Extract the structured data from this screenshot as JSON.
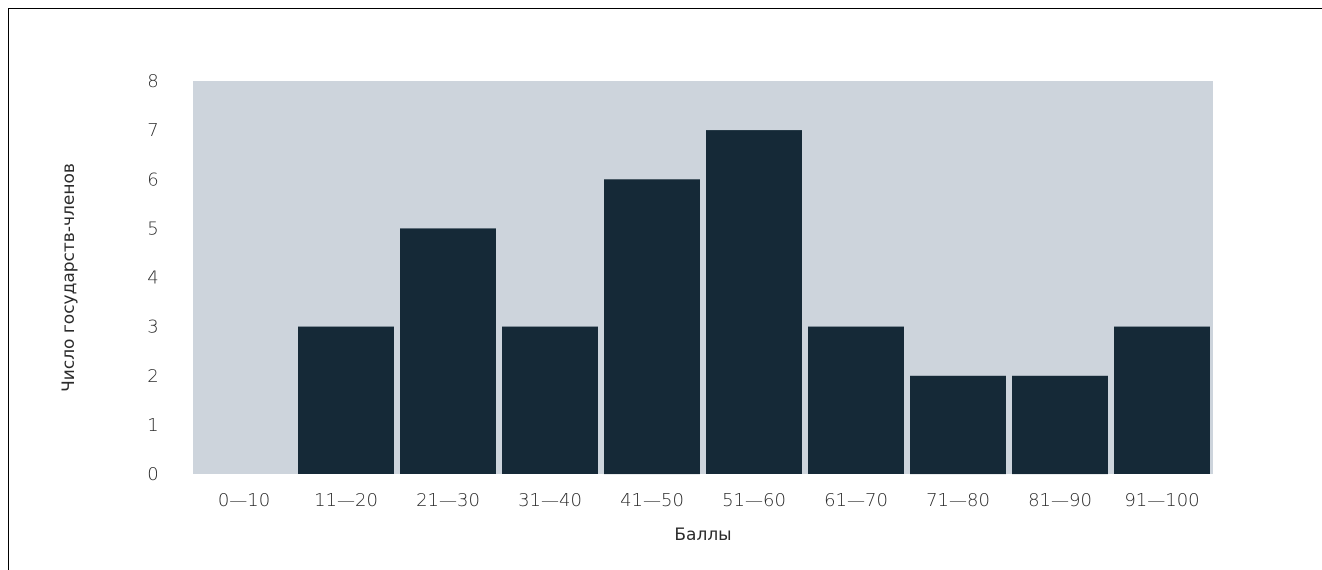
{
  "chart_data": {
    "type": "bar",
    "xlabel": "Баллы",
    "ylabel": "Число государств-членов",
    "ylim": [
      0,
      8
    ],
    "yticks": [
      0,
      1,
      2,
      3,
      4,
      5,
      6,
      7,
      8
    ],
    "categories": [
      "0—10",
      "11—20",
      "21—30",
      "31—40",
      "41—50",
      "51—60",
      "61—70",
      "71—80",
      "81—90",
      "91—100"
    ],
    "values": [
      0,
      3,
      5,
      3,
      6,
      7,
      3,
      2,
      2,
      3
    ],
    "grid": false,
    "colors": {
      "plot_background": "#cdd4dc",
      "bar": "#152937"
    }
  }
}
